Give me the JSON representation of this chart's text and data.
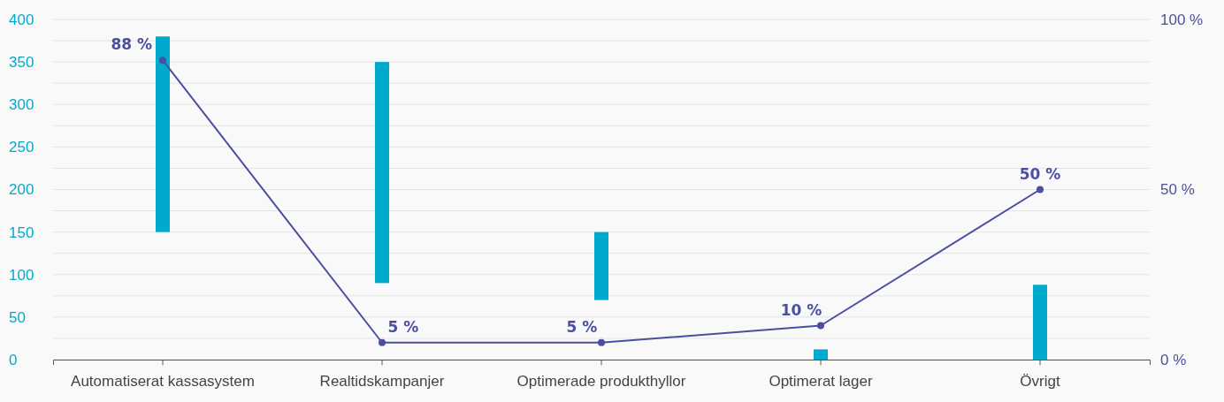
{
  "chart_data": {
    "type": "bar",
    "categories": [
      "Automatiserat kassasystem",
      "Realtidskampanjer",
      "Optimerade produkthyllor",
      "Optimerat lager",
      "Övrigt"
    ],
    "series": [
      {
        "color": "#00aacc",
        "values": [
          230,
          260,
          80,
          12,
          88
        ],
        "base": [
          150,
          90,
          70,
          0,
          0
        ]
      },
      {
        "type": "line",
        "axis": "y2",
        "color": "#4b4fa0",
        "values": [
          88,
          5,
          5,
          10,
          50
        ],
        "value_labels": [
          "88 %",
          "5 %",
          "5 %",
          "10 %",
          "50 %"
        ],
        "marker": "circle"
      }
    ],
    "ylim": [
      0,
      400
    ],
    "yticks": [
      0,
      {
        "value": 25,
        "label": null
      },
      50,
      {
        "value": 75,
        "label": null
      },
      100,
      {
        "value": 125,
        "label": null
      },
      150,
      {
        "value": 175,
        "label": null
      },
      200,
      {
        "value": 225,
        "label": null
      },
      250,
      {
        "value": 275,
        "label": null
      },
      300,
      {
        "value": 325,
        "label": null
      },
      350,
      {
        "value": 375,
        "label": null
      },
      400
    ],
    "y2lim": [
      0,
      100
    ],
    "y2ticks": [
      {
        "value": 0,
        "label": "0 %"
      },
      {
        "value": 50,
        "label": "50 %"
      },
      {
        "value": 100,
        "label": "100 %"
      }
    ],
    "grid": "y"
  }
}
